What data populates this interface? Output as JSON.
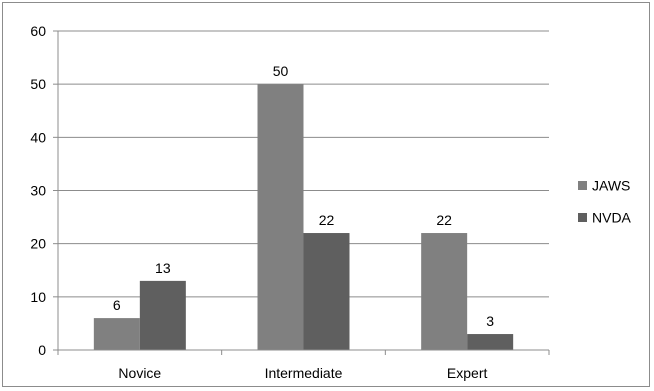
{
  "chart_data": {
    "type": "bar",
    "categories": [
      "Novice",
      "Intermediate",
      "Expert"
    ],
    "series": [
      {
        "name": "JAWS",
        "values": [
          6,
          50,
          22
        ],
        "color": "#808080"
      },
      {
        "name": "NVDA",
        "values": [
          13,
          22,
          3
        ],
        "color": "#5f5f5f"
      }
    ],
    "title": "",
    "xlabel": "",
    "ylabel": "",
    "ylim": [
      0,
      60
    ],
    "yticks": [
      0,
      10,
      20,
      30,
      40,
      50,
      60
    ],
    "grid": true,
    "legend": "right",
    "data_labels": true
  }
}
